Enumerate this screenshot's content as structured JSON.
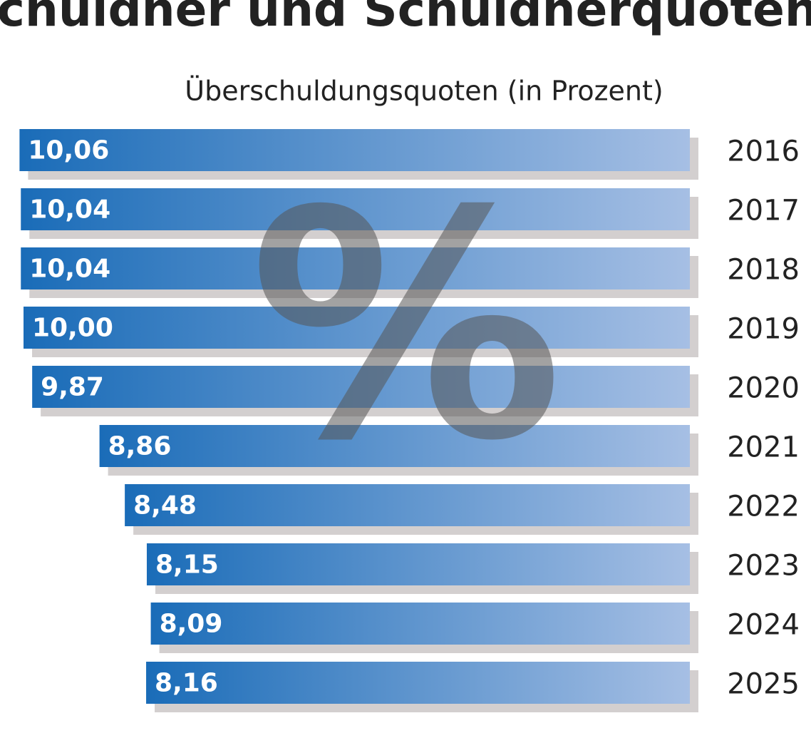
{
  "chart_data": {
    "type": "bar",
    "orientation": "horizontal",
    "title": "Schuldner und Schuldnerquoten",
    "subtitle": "Überschuldungsquoten (in Prozent)",
    "watermark": "%",
    "categories": [
      "2016",
      "2017",
      "2018",
      "2019",
      "2020",
      "2021",
      "2022",
      "2023",
      "2024",
      "2025"
    ],
    "values": [
      10.06,
      10.04,
      10.04,
      10.0,
      9.87,
      8.86,
      8.48,
      8.15,
      8.09,
      8.16
    ],
    "value_labels": [
      "10,06",
      "10,04",
      "10,04",
      "10,00",
      "9,87",
      "8,86",
      "8,48",
      "8,15",
      "8,09",
      "8,16"
    ],
    "color": [
      "#1a6cb8",
      "#a6bfe4"
    ]
  }
}
